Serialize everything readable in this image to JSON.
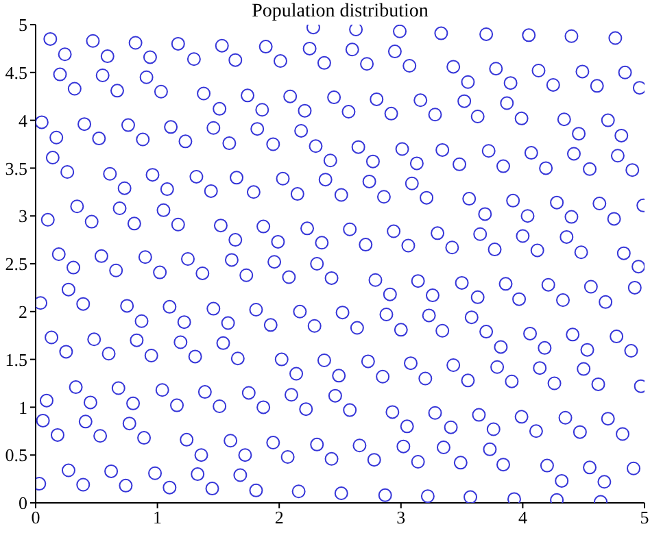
{
  "chart_data": {
    "type": "scatter",
    "title": "Population distribution",
    "color": "#3535d8",
    "marker": "circle",
    "grid": false,
    "legend": false,
    "xlim": [
      0,
      5
    ],
    "ylim": [
      0,
      5
    ],
    "xticks": [
      0,
      1,
      2,
      3,
      4,
      5
    ],
    "yticks": [
      0,
      0.5,
      1,
      1.5,
      2,
      2.5,
      3,
      3.5,
      4,
      4.5,
      5
    ],
    "x": [
      0.12,
      0.24,
      0.47,
      0.59,
      0.82,
      0.94,
      1.17,
      1.3,
      1.53,
      1.64,
      0.2,
      0.32,
      0.55,
      0.67,
      0.91,
      1.03,
      1.38,
      1.51,
      0.05,
      0.17,
      0.4,
      0.52,
      0.76,
      0.88,
      1.11,
      1.23,
      1.46,
      1.59,
      0.14,
      0.26,
      0.61,
      0.73,
      0.96,
      1.08,
      1.32,
      1.44,
      1.65,
      0.34,
      0.1,
      0.46,
      0.69,
      0.81,
      1.05,
      1.17,
      1.52,
      1.64,
      0.19,
      0.31,
      0.54,
      0.9,
      1.25,
      1.61,
      2.28,
      2.63,
      2.99,
      3.33,
      1.89,
      2.01,
      2.25,
      2.37,
      2.6,
      2.72,
      2.95,
      3.07,
      1.74,
      1.86,
      2.09,
      2.21,
      2.45,
      2.57,
      2.8,
      2.92,
      3.16,
      3.28,
      1.82,
      1.95,
      2.18,
      2.3,
      2.42,
      2.65,
      2.77,
      3.01,
      3.13,
      3.34,
      1.79,
      2.03,
      2.15,
      2.38,
      2.51,
      2.74,
      2.86,
      3.09,
      3.21,
      1.87,
      1.99,
      2.23,
      2.35,
      2.58,
      2.71,
      2.94,
      3.06,
      3.3,
      1.96,
      2.31,
      3.7,
      4.05,
      4.4,
      4.76,
      3.43,
      3.55,
      3.78,
      3.9,
      4.13,
      4.25,
      4.49,
      4.61,
      4.84,
      4.96,
      3.52,
      3.63,
      3.87,
      3.99,
      4.34,
      4.46,
      4.7,
      4.81,
      3.48,
      3.72,
      3.84,
      4.07,
      4.19,
      4.42,
      4.55,
      4.78,
      4.9,
      3.56,
      3.69,
      3.92,
      4.04,
      4.28,
      4.4,
      4.63,
      4.75,
      4.99,
      3.65,
      3.42,
      4.0,
      3.77,
      4.36,
      4.12,
      4.48,
      4.83,
      4.95,
      0.66,
      1.02,
      1.37,
      0.27,
      0.39,
      0.04,
      0.75,
      0.87,
      1.1,
      1.22,
      1.46,
      1.58,
      0.13,
      0.25,
      0.48,
      0.6,
      0.83,
      0.95,
      1.19,
      1.31,
      1.54,
      1.66,
      0.33,
      0.09,
      0.45,
      0.68,
      0.8,
      1.04,
      1.16,
      1.39,
      1.51,
      0.06,
      0.18,
      0.41,
      0.53,
      0.77,
      0.89,
      1.24,
      1.36,
      1.6,
      0.27,
      0.03,
      0.39,
      0.62,
      0.74,
      0.98,
      1.1,
      1.33,
      1.45,
      1.68,
      1.72,
      1.73,
      2.08,
      2.43,
      2.79,
      3.14,
      2.91,
      3.26,
      1.81,
      1.93,
      2.17,
      2.29,
      2.52,
      2.64,
      2.88,
      3.0,
      3.23,
      3.34,
      2.02,
      2.14,
      2.37,
      2.49,
      2.73,
      2.85,
      3.08,
      3.2,
      1.75,
      1.87,
      2.1,
      2.22,
      2.46,
      2.58,
      2.93,
      3.05,
      3.28,
      1.95,
      2.07,
      2.31,
      2.43,
      2.66,
      2.78,
      3.02,
      3.14,
      3.35,
      1.81,
      2.16,
      2.51,
      2.87,
      3.22,
      3.5,
      3.63,
      3.86,
      3.97,
      4.21,
      4.33,
      4.56,
      4.68,
      4.92,
      3.58,
      3.7,
      3.82,
      4.06,
      4.18,
      4.41,
      4.53,
      4.77,
      4.89,
      3.43,
      3.55,
      3.79,
      3.91,
      4.14,
      4.26,
      4.5,
      4.62,
      4.97,
      3.41,
      3.64,
      3.76,
      3.99,
      4.11,
      4.35,
      4.47,
      4.7,
      4.82,
      3.49,
      3.73,
      3.84,
      4.2,
      4.32,
      4.55,
      4.67,
      4.91,
      3.57,
      3.93,
      4.28,
      4.64
    ],
    "values": [
      4.85,
      4.69,
      4.83,
      4.67,
      4.81,
      4.66,
      4.8,
      4.64,
      4.78,
      4.63,
      4.48,
      4.33,
      4.47,
      4.31,
      4.45,
      4.3,
      4.28,
      4.12,
      3.98,
      3.82,
      3.96,
      3.81,
      3.95,
      3.8,
      3.93,
      3.78,
      3.92,
      3.76,
      3.61,
      3.46,
      3.44,
      3.29,
      3.43,
      3.28,
      3.41,
      3.26,
      3.4,
      3.1,
      2.96,
      2.94,
      3.08,
      2.92,
      3.06,
      2.91,
      2.9,
      2.75,
      2.6,
      2.46,
      2.58,
      2.57,
      2.55,
      2.54,
      4.97,
      4.95,
      4.93,
      4.91,
      4.77,
      4.62,
      4.75,
      4.6,
      4.74,
      4.59,
      4.72,
      4.57,
      4.26,
      4.11,
      4.25,
      4.1,
      4.24,
      4.09,
      4.22,
      4.07,
      4.21,
      4.06,
      3.91,
      3.75,
      3.89,
      3.73,
      3.58,
      3.72,
      3.57,
      3.7,
      3.55,
      3.69,
      3.25,
      3.39,
      3.23,
      3.38,
      3.22,
      3.36,
      3.2,
      3.34,
      3.19,
      2.89,
      2.73,
      2.87,
      2.72,
      2.86,
      2.7,
      2.84,
      2.69,
      2.82,
      2.52,
      2.5,
      4.9,
      4.89,
      4.88,
      4.86,
      4.56,
      4.4,
      4.54,
      4.39,
      4.52,
      4.37,
      4.51,
      4.36,
      4.5,
      4.34,
      4.2,
      4.04,
      4.18,
      4.02,
      4.01,
      3.86,
      4.0,
      3.84,
      3.54,
      3.68,
      3.52,
      3.66,
      3.5,
      3.65,
      3.49,
      3.63,
      3.48,
      3.18,
      3.02,
      3.16,
      3.0,
      3.14,
      2.99,
      3.13,
      2.97,
      3.11,
      2.81,
      2.67,
      2.79,
      2.65,
      2.78,
      2.64,
      2.62,
      2.61,
      2.47,
      2.43,
      2.41,
      2.4,
      2.23,
      2.08,
      2.09,
      2.06,
      1.9,
      2.05,
      1.89,
      2.03,
      1.88,
      1.73,
      1.58,
      1.71,
      1.56,
      1.7,
      1.54,
      1.68,
      1.53,
      1.67,
      1.51,
      1.21,
      1.07,
      1.05,
      1.2,
      1.04,
      1.18,
      1.02,
      1.16,
      1.01,
      0.86,
      0.71,
      0.85,
      0.7,
      0.83,
      0.68,
      0.66,
      0.5,
      0.65,
      0.34,
      0.2,
      0.19,
      0.33,
      0.18,
      0.31,
      0.16,
      0.3,
      0.15,
      0.29,
      0.5,
      2.38,
      2.36,
      2.35,
      2.33,
      2.32,
      2.18,
      2.17,
      2.02,
      1.86,
      2.0,
      1.85,
      1.99,
      1.83,
      1.97,
      1.81,
      1.96,
      1.8,
      1.5,
      1.35,
      1.49,
      1.33,
      1.48,
      1.32,
      1.46,
      1.3,
      1.15,
      1.0,
      1.13,
      0.98,
      1.12,
      0.97,
      0.95,
      0.8,
      0.94,
      0.63,
      0.48,
      0.61,
      0.46,
      0.6,
      0.45,
      0.59,
      0.43,
      0.58,
      0.13,
      0.12,
      0.1,
      0.08,
      0.07,
      2.3,
      2.15,
      2.29,
      2.13,
      2.28,
      2.12,
      2.26,
      2.1,
      2.25,
      1.94,
      1.79,
      1.63,
      1.77,
      1.62,
      1.76,
      1.6,
      1.74,
      1.59,
      1.44,
      1.28,
      1.42,
      1.27,
      1.41,
      1.25,
      1.4,
      1.24,
      1.22,
      0.79,
      0.92,
      0.77,
      0.9,
      0.75,
      0.89,
      0.74,
      0.88,
      0.72,
      0.42,
      0.56,
      0.4,
      0.39,
      0.23,
      0.37,
      0.22,
      0.36,
      0.06,
      0.04,
      0.03,
      0.01
    ]
  }
}
